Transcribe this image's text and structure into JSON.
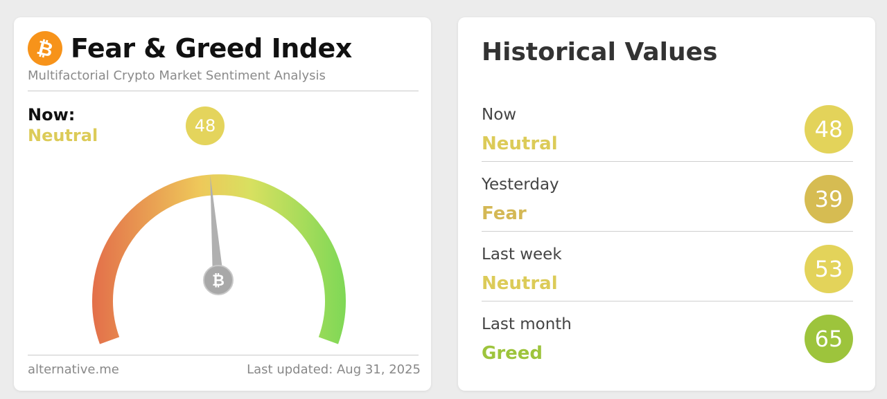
{
  "index_card": {
    "logo_symbol": "₿",
    "title": "Fear & Greed Index",
    "subtitle": "Multifactorial Crypto Market Sentiment Analysis",
    "now_label": "Now:",
    "now_classification": "Neutral",
    "value": "48",
    "gauge_value": 48,
    "gauge_colors": [
      "#e3704a",
      "#eec85a",
      "#d8e060",
      "#7ed856"
    ],
    "needle_color": "#b0b0b0",
    "needle_symbol": "₿",
    "footer_source": "alternative.me",
    "footer_updated": "Last updated: Aug 31, 2025"
  },
  "historical": {
    "title": "Historical Values",
    "rows": [
      {
        "period": "Now",
        "classification": "Neutral",
        "value": "48",
        "color": "#e3d35a",
        "text_color": "#dccb58"
      },
      {
        "period": "Yesterday",
        "classification": "Fear",
        "value": "39",
        "color": "#d6bc52",
        "text_color": "#d4b855"
      },
      {
        "period": "Last week",
        "classification": "Neutral",
        "value": "53",
        "color": "#e3d35a",
        "text_color": "#dccb58"
      },
      {
        "period": "Last month",
        "classification": "Greed",
        "value": "65",
        "color": "#9dc43c",
        "text_color": "#9dc43c"
      }
    ]
  }
}
